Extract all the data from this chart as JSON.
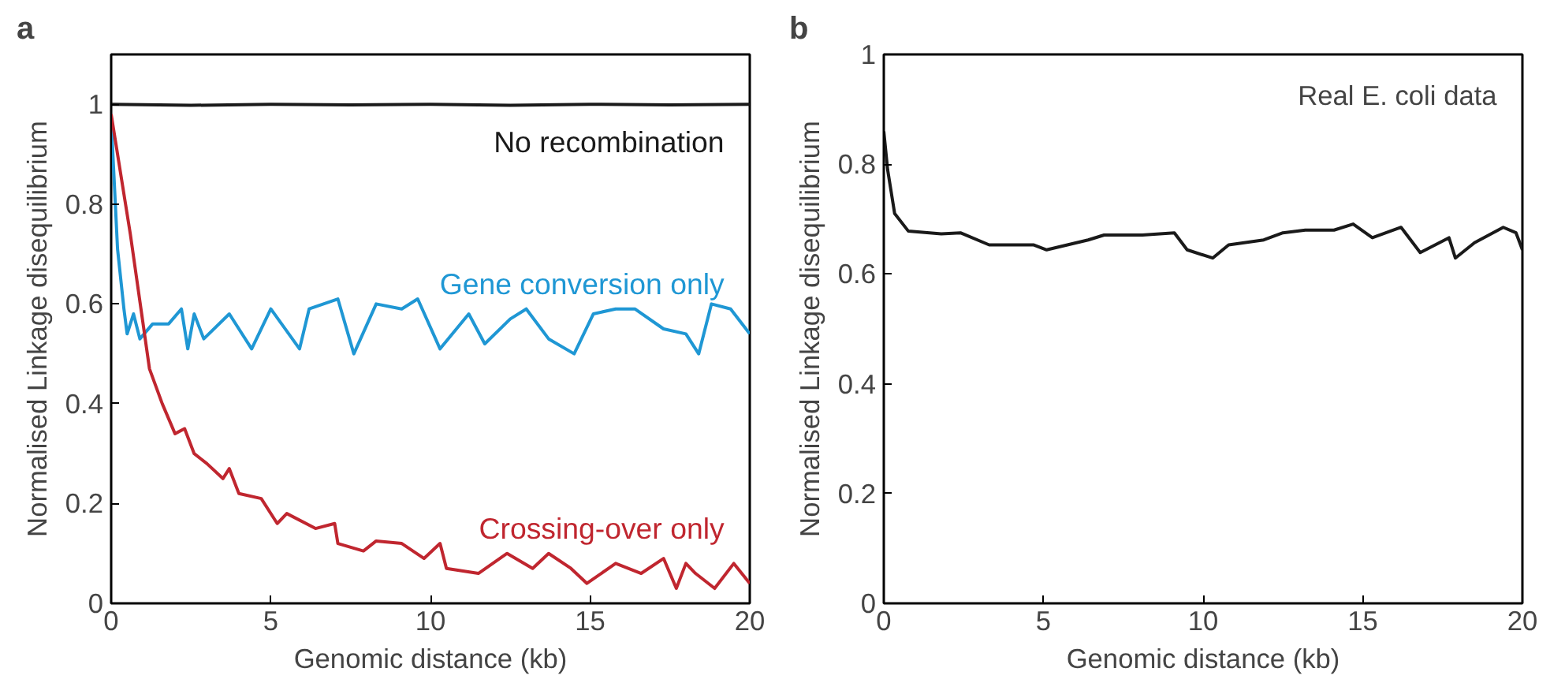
{
  "chart_data": [
    {
      "type": "line",
      "title": "a",
      "xlabel": "Genomic distance (kb)",
      "ylabel": "Normalised Linkage disequilibrium",
      "xlim": [
        0,
        20
      ],
      "ylim": [
        0,
        1.1
      ],
      "xticks": [
        0,
        5,
        10,
        15,
        20
      ],
      "yticks": [
        0,
        0.2,
        0.4,
        0.6,
        0.8,
        1
      ],
      "grid": false,
      "legend": false,
      "series": [
        {
          "name": "No recombination",
          "color": "#1a1a1a",
          "x": [
            0,
            2.5,
            5,
            7.5,
            10,
            12.5,
            15,
            17.5,
            20
          ],
          "values": [
            1.0,
            0.998,
            1.0,
            0.999,
            1.0,
            0.998,
            1.0,
            0.999,
            1.0
          ]
        },
        {
          "name": "Gene conversion only",
          "color": "#1f97d4",
          "x": [
            0,
            0.2,
            0.4,
            0.5,
            0.7,
            0.9,
            1.3,
            1.8,
            2.2,
            2.4,
            2.6,
            2.9,
            3.7,
            4.4,
            5.0,
            5.9,
            6.2,
            7.1,
            7.6,
            8.3,
            9.1,
            9.6,
            10.3,
            11.2,
            11.7,
            12.5,
            13.0,
            13.7,
            14.5,
            15.1,
            15.8,
            16.4,
            17.3,
            18.0,
            18.4,
            18.8,
            19.4,
            20
          ],
          "values": [
            0.97,
            0.71,
            0.59,
            0.54,
            0.58,
            0.53,
            0.56,
            0.56,
            0.59,
            0.51,
            0.58,
            0.53,
            0.58,
            0.51,
            0.59,
            0.51,
            0.59,
            0.61,
            0.5,
            0.6,
            0.59,
            0.61,
            0.51,
            0.58,
            0.52,
            0.57,
            0.59,
            0.53,
            0.5,
            0.58,
            0.59,
            0.59,
            0.55,
            0.54,
            0.5,
            0.6,
            0.59,
            0.54
          ]
        },
        {
          "name": "Crossing-over only",
          "color": "#c0262f",
          "x": [
            0,
            0.6,
            1.2,
            1.6,
            2.0,
            2.3,
            2.6,
            3.0,
            3.5,
            3.7,
            4.0,
            4.7,
            5.2,
            5.5,
            6.4,
            7.0,
            7.1,
            7.9,
            8.3,
            9.1,
            9.8,
            10.3,
            10.5,
            11.5,
            12.4,
            13.2,
            13.7,
            14.4,
            14.9,
            15.8,
            16.6,
            17.3,
            17.7,
            18.0,
            18.3,
            18.9,
            19.5,
            20
          ],
          "values": [
            0.98,
            0.74,
            0.47,
            0.4,
            0.34,
            0.35,
            0.3,
            0.28,
            0.25,
            0.27,
            0.22,
            0.21,
            0.16,
            0.18,
            0.15,
            0.16,
            0.12,
            0.105,
            0.125,
            0.12,
            0.09,
            0.12,
            0.07,
            0.06,
            0.1,
            0.07,
            0.1,
            0.07,
            0.04,
            0.08,
            0.06,
            0.09,
            0.03,
            0.08,
            0.06,
            0.03,
            0.08,
            0.04
          ]
        }
      ]
    },
    {
      "type": "line",
      "title": "b",
      "xlabel": "Genomic distance (kb)",
      "ylabel": "Normalised Linkage disequilibrium",
      "xlim": [
        0,
        20
      ],
      "ylim": [
        0,
        1
      ],
      "xticks": [
        0,
        5,
        10,
        15,
        20
      ],
      "yticks": [
        0,
        0.2,
        0.4,
        0.6,
        0.8,
        1
      ],
      "grid": false,
      "legend": false,
      "annotations": [
        "Real E. coli data"
      ],
      "series": [
        {
          "color": "#1a1a1a",
          "x": [
            0,
            0.12,
            0.34,
            0.77,
            1.8,
            2.4,
            3.3,
            4.7,
            5.1,
            6.4,
            6.9,
            8.1,
            9.1,
            9.5,
            10.3,
            10.8,
            11.9,
            12.5,
            13.2,
            14.1,
            14.7,
            15.3,
            16.2,
            16.8,
            17.7,
            17.9,
            18.5,
            19.4,
            19.8,
            20
          ],
          "values": [
            0.86,
            0.79,
            0.71,
            0.678,
            0.673,
            0.675,
            0.653,
            0.653,
            0.644,
            0.662,
            0.671,
            0.671,
            0.675,
            0.644,
            0.629,
            0.653,
            0.662,
            0.675,
            0.68,
            0.68,
            0.691,
            0.666,
            0.685,
            0.639,
            0.666,
            0.629,
            0.657,
            0.685,
            0.675,
            0.644
          ]
        }
      ]
    }
  ]
}
